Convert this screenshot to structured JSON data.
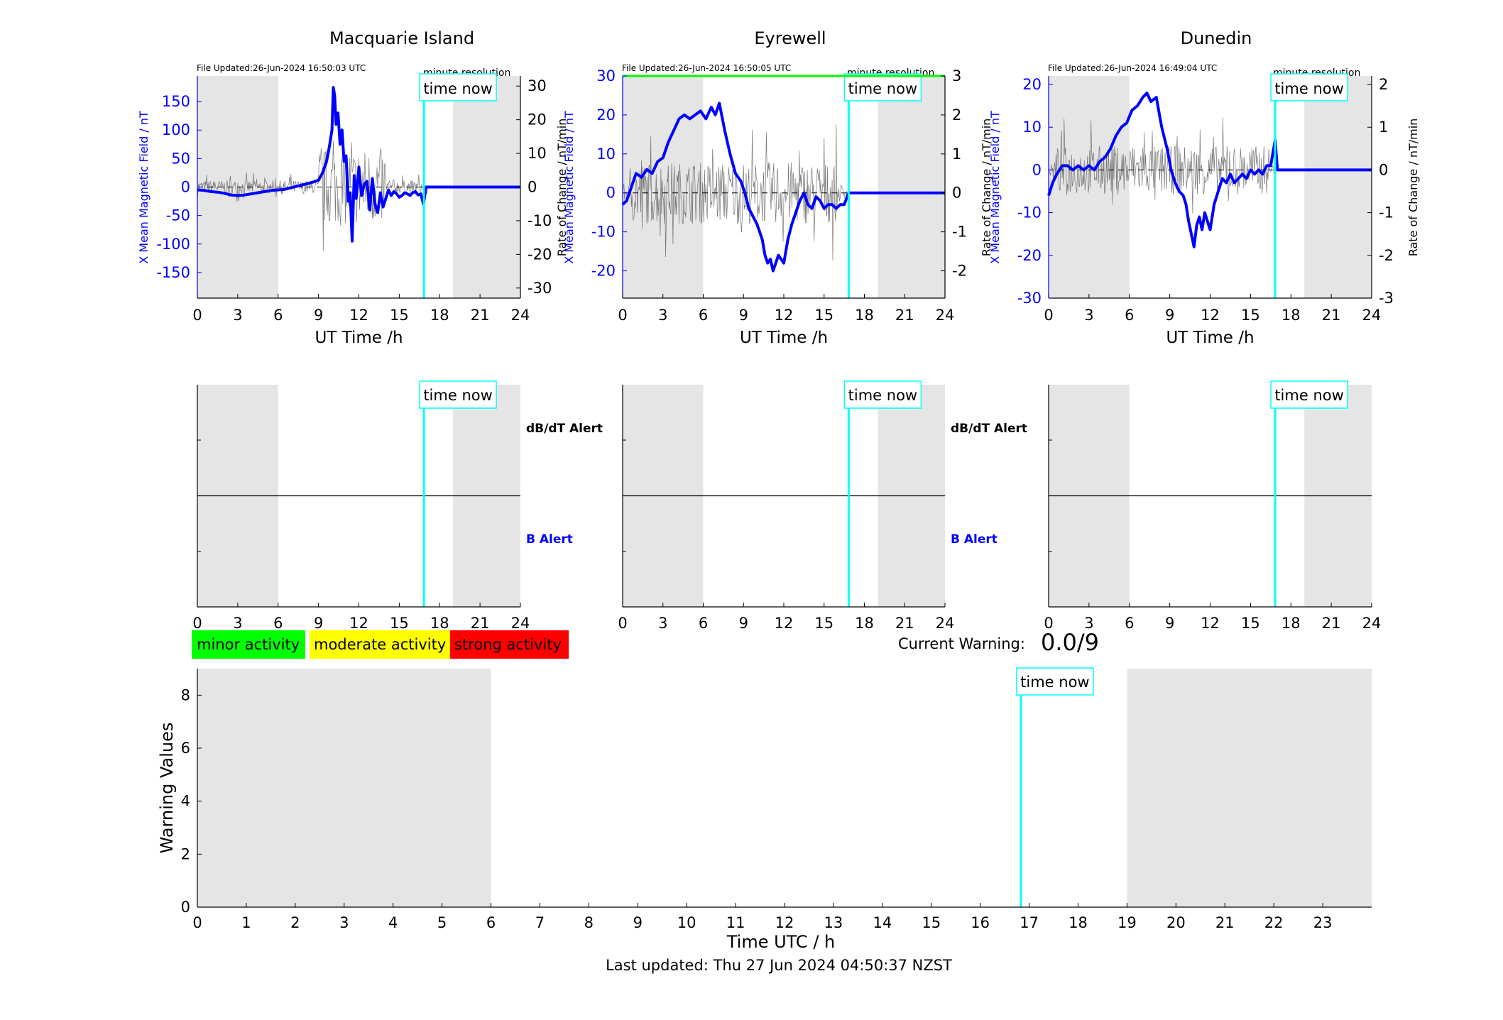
{
  "colors": {
    "field": "#0000ff",
    "rate": "#000000",
    "time_now": "#00ffff",
    "shade": "#e5e5e5",
    "minor": "#00ff00",
    "moderate": "#ffff00",
    "strong": "#ff0000"
  },
  "stations": [
    {
      "title": "Macquarie Island",
      "file_updated": "File Updated:26-Jun-2024 16:50:03 UTC",
      "resolution": "minute resolution",
      "time_now_label": "time now",
      "y_left_label": "X Mean Magnetic Field / nT",
      "y_right_label": "Rate of Change / nT/min",
      "x_label": "UT Time /h",
      "alert_dbdt": "dB/dT Alert",
      "alert_b": "B Alert"
    },
    {
      "title": "Eyrewell",
      "file_updated": "File Updated:26-Jun-2024 16:50:05 UTC",
      "resolution": "minute resolution",
      "time_now_label": "time now",
      "y_left_label": "X Mean Magnetic Field / nT",
      "y_right_label": "Rate of Change / nT/min",
      "x_label": "UT Time /h",
      "alert_dbdt": "dB/dT Alert",
      "alert_b": "B Alert"
    },
    {
      "title": "Dunedin",
      "file_updated": "File Updated:26-Jun-2024 16:49:04 UTC",
      "resolution": "minute resolution",
      "time_now_label": "time now",
      "y_left_label": "X Mean Magnetic Field / nT",
      "y_right_label": "Rate of Change / nT/min",
      "x_label": "UT Time /h"
    }
  ],
  "legend": {
    "minor": "minor activity",
    "moderate": "moderate activity",
    "strong": "strong activity"
  },
  "warning": {
    "label": "Current Warning:",
    "value": "0.0/9",
    "time_now_label": "time now",
    "y_label": "Warning Values",
    "x_label": "Time UTC / h",
    "last_updated": "Last updated: Thu 27 Jun 2024 04:50:37 NZST"
  },
  "chart_data": [
    {
      "type": "line",
      "title": "Macquarie Island",
      "xlabel": "UT Time /h",
      "ylabel": "X Mean Magnetic Field / nT",
      "ylabel_right": "Rate of Change / nT/min",
      "xlim": [
        0,
        24
      ],
      "ylim": [
        -195,
        195
      ],
      "ylim_right": [
        -33,
        33
      ],
      "xticks": [
        "0",
        "3",
        "6",
        "9",
        "12",
        "15",
        "18",
        "21",
        "24"
      ],
      "yticks_left": [
        "-150",
        "-100",
        "-50",
        "0",
        "50",
        "100",
        "150"
      ],
      "yticks_right": [
        "-30",
        "-20",
        "-10",
        "0",
        "10",
        "20",
        "30"
      ],
      "time_now": 16.83,
      "shaded_hours": [
        [
          0,
          6
        ],
        [
          19,
          24
        ]
      ],
      "series": [
        {
          "x": [
            0,
            0.5,
            1,
            1.5,
            2,
            2.5,
            3,
            3.5,
            4,
            4.5,
            5,
            5.5,
            6,
            6.5,
            7,
            7.5,
            8,
            8.5,
            9,
            9.3,
            9.6,
            9.8,
            10,
            10.1,
            10.2,
            10.3,
            10.45,
            10.6,
            10.75,
            10.9,
            11.05,
            11.2,
            11.35,
            11.5,
            11.65,
            11.8,
            12,
            12.2,
            12.4,
            12.6,
            12.8,
            13,
            13.2,
            13.4,
            13.6,
            13.8,
            14,
            14.2,
            14.4,
            14.6,
            14.8,
            15,
            15.2,
            15.4,
            15.6,
            15.8,
            16,
            16.2,
            16.4,
            16.6,
            16.8,
            17,
            18,
            20,
            22,
            24
          ],
          "y": [
            -5,
            -6,
            -8,
            -9,
            -11,
            -14,
            -15,
            -14,
            -12,
            -10,
            -8,
            -6,
            -5,
            -4,
            -1,
            2,
            5,
            8,
            12,
            25,
            45,
            70,
            100,
            175,
            160,
            110,
            130,
            75,
            100,
            45,
            55,
            -25,
            -10,
            -95,
            20,
            -20,
            35,
            -15,
            5,
            10,
            -40,
            15,
            -30,
            -45,
            -10,
            -35,
            -20,
            -5,
            -15,
            -8,
            -12,
            -18,
            -15,
            -10,
            -12,
            -15,
            -10,
            -8,
            -14,
            -12,
            -30,
            0,
            0,
            0,
            0,
            0
          ]
        }
      ]
    },
    {
      "type": "line",
      "title": "Eyrewell",
      "xlabel": "UT Time /h",
      "ylabel": "X Mean Magnetic Field / nT",
      "ylabel_right": "Rate of Change / nT/min",
      "xlim": [
        0,
        24
      ],
      "ylim": [
        -27,
        30
      ],
      "ylim_right": [
        -2.7,
        3
      ],
      "xticks": [
        "0",
        "3",
        "6",
        "9",
        "12",
        "15",
        "18",
        "21",
        "24"
      ],
      "yticks_left": [
        "-20",
        "-10",
        "0",
        "10",
        "20",
        "30"
      ],
      "yticks_right": [
        "-2",
        "-1",
        "0",
        "1",
        "2",
        "3"
      ],
      "time_now": 16.83,
      "shaded_hours": [
        [
          0,
          6
        ],
        [
          19,
          24
        ]
      ],
      "series": [
        {
          "x": [
            0,
            0.3,
            0.6,
            1,
            1.4,
            1.8,
            2.2,
            2.6,
            3,
            3.4,
            3.8,
            4.2,
            4.6,
            5,
            5.4,
            5.8,
            6.2,
            6.6,
            6.9,
            7.2,
            7.6,
            8,
            8.4,
            8.8,
            9.1,
            9.4,
            9.7,
            10,
            10.2,
            10.4,
            10.6,
            10.8,
            11,
            11.2,
            11.4,
            11.6,
            11.8,
            12,
            12.3,
            12.6,
            12.9,
            13.2,
            13.5,
            13.8,
            14.1,
            14.4,
            14.7,
            15,
            15.3,
            15.6,
            15.9,
            16.2,
            16.5,
            16.83,
            17,
            18,
            20,
            22,
            24
          ],
          "y": [
            -3,
            -2,
            1,
            5,
            4,
            6,
            5,
            8,
            9,
            13,
            16,
            19,
            20,
            19,
            20,
            21,
            19,
            22,
            20,
            23,
            16,
            10,
            5,
            3,
            0,
            -4,
            -6,
            -8,
            -10,
            -12,
            -16,
            -18,
            -17,
            -20,
            -18,
            -16,
            -17,
            -18,
            -12,
            -8,
            -5,
            -2,
            0,
            -3,
            -4,
            -1,
            -2,
            -4,
            -3,
            -3,
            -4,
            -3,
            -3,
            0,
            0,
            0,
            0,
            0,
            0
          ]
        }
      ]
    },
    {
      "type": "line",
      "title": "Dunedin",
      "xlabel": "UT Time /h",
      "ylabel": "X Mean Magnetic Field / nT",
      "ylabel_right": "Rate of Change / nT/min",
      "xlim": [
        0,
        24
      ],
      "ylim": [
        -30,
        22
      ],
      "ylim_right": [
        -3,
        2.2
      ],
      "xticks": [
        "0",
        "3",
        "6",
        "9",
        "12",
        "15",
        "18",
        "21",
        "24"
      ],
      "yticks_left": [
        "-30",
        "-20",
        "-10",
        "0",
        "10",
        "20"
      ],
      "yticks_right": [
        "-3",
        "-2",
        "-1",
        "0",
        "1",
        "2"
      ],
      "time_now": 16.83,
      "shaded_hours": [
        [
          0,
          6
        ],
        [
          19,
          24
        ]
      ],
      "series": [
        {
          "x": [
            0,
            0.3,
            0.6,
            1,
            1.4,
            1.8,
            2.2,
            2.6,
            3,
            3.4,
            3.8,
            4.2,
            4.6,
            5,
            5.4,
            5.8,
            6.2,
            6.6,
            7,
            7.3,
            7.6,
            8,
            8.4,
            8.8,
            9.1,
            9.4,
            9.7,
            10,
            10.2,
            10.4,
            10.6,
            10.8,
            11,
            11.2,
            11.4,
            11.6,
            11.8,
            12,
            12.3,
            12.6,
            12.9,
            13.2,
            13.5,
            13.8,
            14.1,
            14.4,
            14.7,
            15,
            15.3,
            15.6,
            15.9,
            16.2,
            16.5,
            16.83,
            17,
            18,
            20,
            22,
            24
          ],
          "y": [
            -6,
            -3,
            -1,
            1,
            1,
            0,
            1,
            0,
            1,
            0,
            2,
            3,
            5,
            8,
            10,
            11,
            14,
            15,
            17,
            18,
            16,
            17,
            10,
            5,
            0,
            -3,
            -5,
            -6,
            -8,
            -12,
            -15,
            -18,
            -13,
            -11,
            -14,
            -10,
            -12,
            -14,
            -8,
            -5,
            -2,
            -3,
            -1,
            -3,
            -2,
            -1,
            -2,
            0,
            -1,
            0,
            -1,
            1,
            1,
            7,
            0,
            0,
            0,
            0,
            0
          ]
        }
      ]
    },
    {
      "type": "bar",
      "title": "",
      "xlabel": "Time UTC / h",
      "ylabel": "Warning Values",
      "xlim": [
        0,
        24
      ],
      "ylim": [
        0,
        9
      ],
      "xticks": [
        "0",
        "1",
        "2",
        "3",
        "4",
        "5",
        "6",
        "7",
        "8",
        "9",
        "10",
        "11",
        "12",
        "13",
        "14",
        "15",
        "16",
        "17",
        "18",
        "19",
        "20",
        "21",
        "22",
        "23"
      ],
      "yticks": [
        "0",
        "2",
        "4",
        "6",
        "8"
      ],
      "time_now": 16.83,
      "shaded_hours": [
        [
          0,
          6
        ],
        [
          19,
          24
        ]
      ],
      "current_warning": "0.0/9",
      "values": []
    }
  ]
}
